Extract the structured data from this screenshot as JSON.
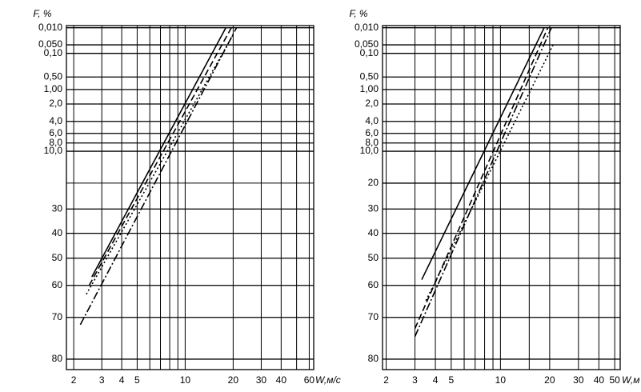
{
  "chart_data": [
    {
      "type": "line",
      "ylabel": "F, %",
      "xlabel": "W,м/с",
      "xscale": "log",
      "yscale": "gumbel",
      "xlim": [
        1.8,
        64
      ],
      "ylim": [
        0.008,
        82
      ],
      "xticks": [
        2,
        3,
        4,
        5,
        10,
        20,
        30,
        40,
        60
      ],
      "xgrid_minor": [
        6,
        7,
        8,
        9,
        50
      ],
      "yticks": [
        {
          "value": 0.01,
          "label": "0,010"
        },
        {
          "value": 0.05,
          "label": "0,050"
        },
        {
          "value": 0.1,
          "label": "0,10"
        },
        {
          "value": 0.5,
          "label": "0,50"
        },
        {
          "value": 1,
          "label": "1,00"
        },
        {
          "value": 2,
          "label": "2,0"
        },
        {
          "value": 4,
          "label": "4,0"
        },
        {
          "value": 6,
          "label": "6,0"
        },
        {
          "value": 8,
          "label": "8,0"
        },
        {
          "value": 10,
          "label": "10,0"
        },
        30,
        40,
        50,
        60,
        70,
        80
      ],
      "ygrid_minor": [
        20
      ],
      "grid": true,
      "series": [
        {
          "color": "#000000",
          "dash": "solid",
          "x": [
            2.6,
            18
          ],
          "values": [
            57,
            0.01
          ]
        },
        {
          "color": "#000000",
          "dash": "dashed",
          "x": [
            2.5,
            19.5
          ],
          "values": [
            60,
            0.01
          ]
        },
        {
          "color": "#000000",
          "dash": "dashdot",
          "x": [
            2.2,
            21
          ],
          "values": [
            72,
            0.01
          ]
        },
        {
          "color": "#000000",
          "dash": "dotted",
          "x": [
            2.4,
            20
          ],
          "values": [
            63,
            0.02
          ]
        }
      ]
    },
    {
      "type": "line",
      "ylabel": "F, %",
      "xlabel": "W,м",
      "xscale": "log",
      "yscale": "gumbel",
      "xlim": [
        1.9,
        54
      ],
      "ylim": [
        0.008,
        82
      ],
      "xticks": [
        2,
        3,
        4,
        5,
        10,
        20,
        30,
        40,
        50
      ],
      "xgrid_minor": [
        6,
        7,
        8,
        9,
        15
      ],
      "yticks": [
        {
          "value": 0.01,
          "label": "0,010"
        },
        {
          "value": 0.05,
          "label": "0,050"
        },
        {
          "value": 0.1,
          "label": "0,10"
        },
        {
          "value": 0.5,
          "label": "0,50"
        },
        {
          "value": 1,
          "label": "1,00"
        },
        {
          "value": 2,
          "label": "2,0"
        },
        {
          "value": 4,
          "label": "4,0"
        },
        {
          "value": 6,
          "label": "6,0"
        },
        {
          "value": 8,
          "label": "8,0"
        },
        {
          "value": 10,
          "label": "10,0"
        },
        20,
        30,
        40,
        50,
        60,
        70,
        80
      ],
      "grid": true,
      "series": [
        {
          "color": "#000000",
          "dash": "solid",
          "x": [
            3.3,
            18.5
          ],
          "values": [
            58,
            0.01
          ]
        },
        {
          "color": "#000000",
          "dash": "dashed",
          "x": [
            3.0,
            19.5
          ],
          "values": [
            73,
            0.01
          ]
        },
        {
          "color": "#000000",
          "dash": "dashdot",
          "x": [
            3.0,
            20.5
          ],
          "values": [
            75,
            0.01
          ]
        },
        {
          "color": "#000000",
          "dash": "dotted",
          "x": [
            3.5,
            21
          ],
          "values": [
            65,
            0.05
          ]
        }
      ]
    }
  ]
}
